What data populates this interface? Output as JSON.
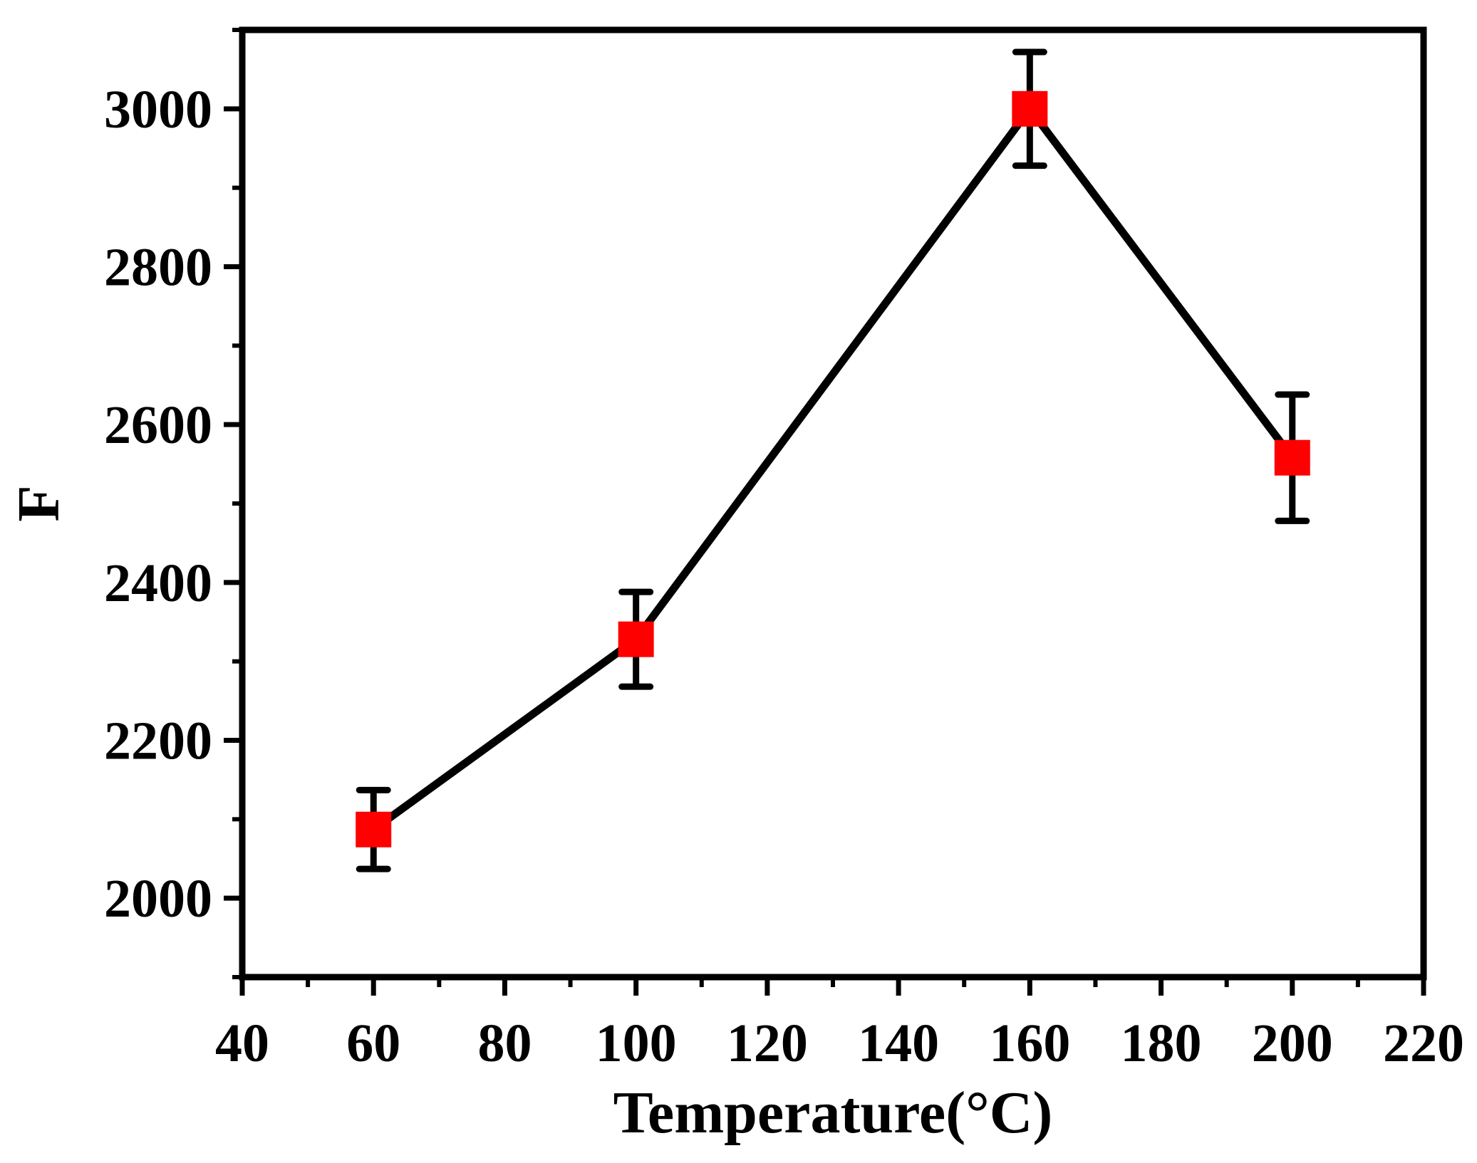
{
  "chart_data": {
    "type": "line",
    "title": "",
    "xlabel": "Temperature(°C)",
    "ylabel": "F",
    "xlim": [
      40,
      220
    ],
    "ylim": [
      1900,
      3100
    ],
    "xticks": [
      40,
      60,
      80,
      100,
      120,
      140,
      160,
      180,
      200,
      220
    ],
    "yticks": [
      2000,
      2200,
      2400,
      2600,
      2800,
      3000
    ],
    "grid": false,
    "series": [
      {
        "x": [
          60,
          100,
          160,
          200
        ],
        "y": [
          2087,
          2328,
          3000,
          2558
        ],
        "yerr": [
          50,
          60,
          72,
          80
        ],
        "line_color": "#000000",
        "marker": "square",
        "marker_color": "#ff0000"
      }
    ]
  }
}
